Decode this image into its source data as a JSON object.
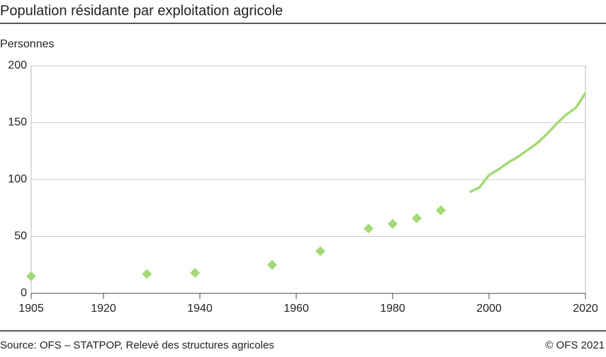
{
  "chart_data": {
    "type": "line",
    "title": "Population résidante par exploitation agricole",
    "ylabel": "Personnes",
    "source": "Source: OFS –  STATPOP, Relevé des structures agricoles",
    "credit": "© OFS 2021",
    "xlim": [
      1905,
      2020
    ],
    "xticks": [
      1905,
      1920,
      1940,
      1960,
      1980,
      2000,
      2020
    ],
    "ylim": [
      0,
      200
    ],
    "yticks": [
      0,
      50,
      100,
      150,
      200
    ],
    "grid": true,
    "series": [
      {
        "marker": "diamond",
        "color": "#a3d977",
        "x": [
          1905,
          1929,
          1939,
          1955,
          1965,
          1975,
          1980,
          1985,
          1990
        ],
        "values": [
          15,
          17,
          18,
          25,
          37,
          57,
          61,
          66,
          73
        ]
      },
      {
        "marker": "none",
        "color": "#a3d977",
        "x": [
          1996,
          1998,
          2000,
          2002,
          2004,
          2006,
          2008,
          2010,
          2012,
          2014,
          2016,
          2018,
          2020
        ],
        "values": [
          89,
          93,
          104,
          109,
          115,
          120,
          126,
          132,
          140,
          149,
          157,
          163,
          176
        ]
      }
    ]
  }
}
